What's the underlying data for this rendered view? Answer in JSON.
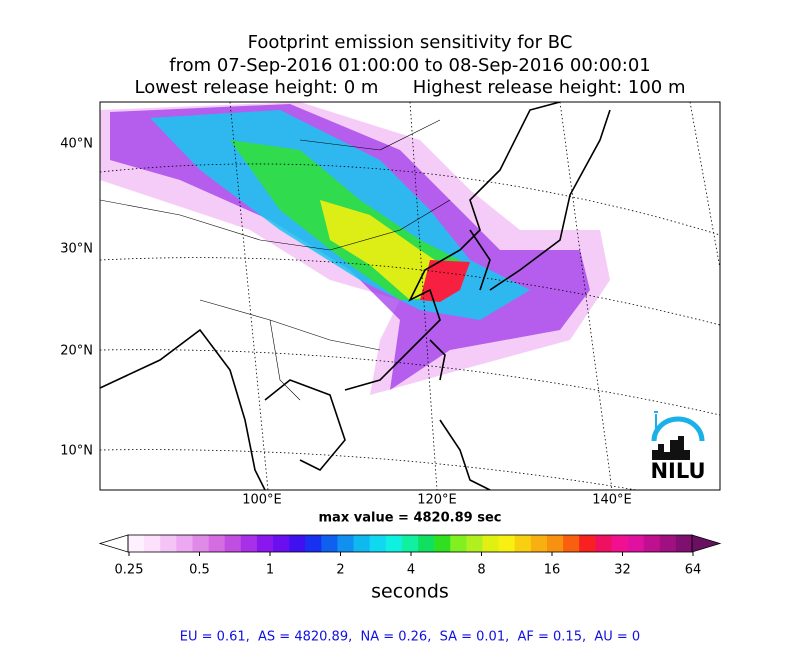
{
  "title": [
    "Footprint emission sensitivity for BC",
    "from 07-Sep-2016 01:00:00 to 08-Sep-2016 00:00:01",
    "Lowest release height: 0 m      Highest release height: 100 m"
  ],
  "map": {
    "lat_labels": [
      "40°N",
      "30°N",
      "20°N",
      "10°N"
    ],
    "lon_labels": [
      "100°E",
      "120°E",
      "140°E"
    ],
    "logo": "NILU"
  },
  "annotation": "max value = 4820.89 sec",
  "colorbar": {
    "ticks": [
      "0.25",
      "0.5",
      "1",
      "2",
      "4",
      "8",
      "16",
      "32",
      "64"
    ],
    "label": "seconds",
    "colors": [
      "#fff0ff",
      "#fce0fc",
      "#f4c4f6",
      "#eca8f0",
      "#e08ae8",
      "#d46ce2",
      "#c04ee0",
      "#a830e8",
      "#8a18ee",
      "#6a10f0",
      "#4010f0",
      "#1830f0",
      "#1060f0",
      "#1090f0",
      "#10b8f0",
      "#10d8f0",
      "#10f0e0",
      "#10f0a0",
      "#10e060",
      "#30e020",
      "#80f020",
      "#b0f020",
      "#e0f010",
      "#f8f010",
      "#f8d010",
      "#f8b010",
      "#f89010",
      "#f86010",
      "#f82020",
      "#f01060",
      "#f01090",
      "#e010a0",
      "#c01090",
      "#a01080",
      "#801070"
    ],
    "under_color": "#ffffff",
    "over_color": "#6a1060"
  },
  "footer": "EU = 0.61,  AS = 4820.89,  NA = 0.26,  SA = 0.01,  AF = 0.15,  AU = 0"
}
